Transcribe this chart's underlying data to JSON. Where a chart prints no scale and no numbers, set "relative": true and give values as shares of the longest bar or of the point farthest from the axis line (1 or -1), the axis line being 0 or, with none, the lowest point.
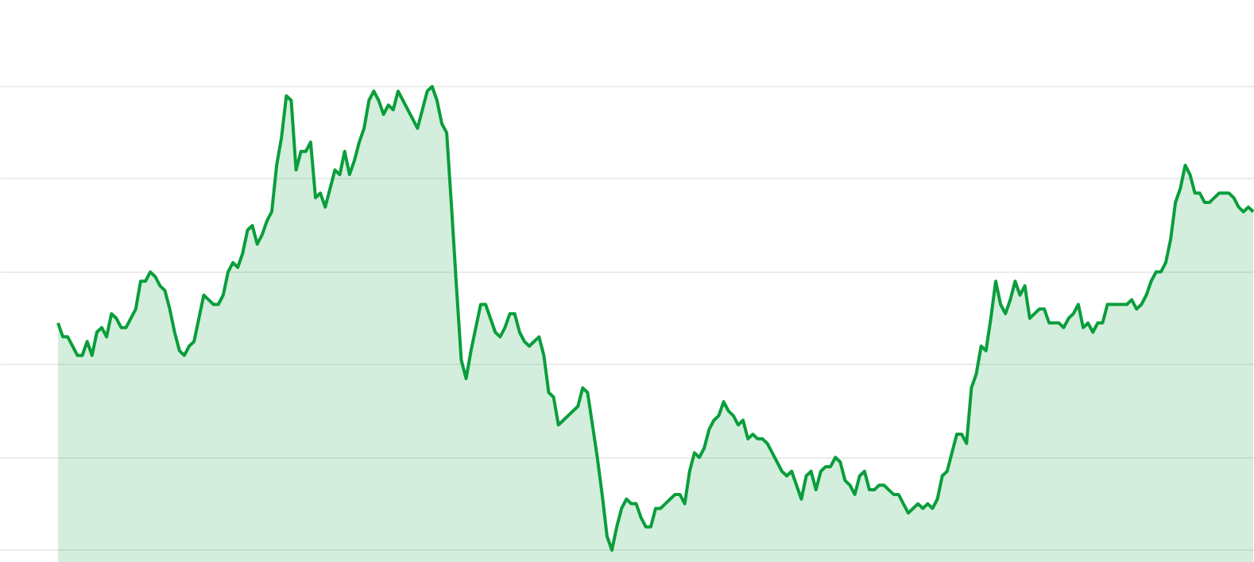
{
  "chart_data": {
    "type": "area",
    "relative": true,
    "grid": "y",
    "tick_labels": false,
    "categories": [
      null,
      null,
      null,
      null,
      null,
      null,
      null,
      null,
      null,
      null,
      null,
      null,
      null,
      null,
      null,
      null,
      null,
      null,
      null,
      null,
      null,
      null,
      null,
      null,
      null,
      null,
      null,
      null,
      null,
      null,
      null,
      null,
      null,
      null,
      null,
      null,
      null,
      null,
      null,
      null,
      null,
      null,
      null,
      null,
      null,
      null,
      null,
      null,
      null,
      null,
      null,
      null,
      null,
      null,
      null,
      null,
      null,
      null,
      null,
      null,
      null,
      null,
      null,
      null,
      null,
      null,
      null,
      null,
      null,
      null,
      null,
      null,
      null,
      null,
      null,
      null,
      null,
      null,
      null,
      null,
      null,
      null,
      null,
      null,
      null,
      null,
      null,
      null,
      null,
      null,
      null,
      null,
      null,
      null,
      null,
      null,
      null,
      null,
      null,
      null,
      null,
      null,
      null,
      null,
      null,
      null,
      null,
      null,
      null,
      null,
      null,
      null,
      null,
      null,
      null,
      null,
      null,
      null,
      null,
      null,
      null,
      null,
      null,
      null,
      null,
      null,
      null,
      null,
      null,
      null,
      null,
      null,
      null,
      null,
      null,
      null,
      null,
      null,
      null,
      null,
      null,
      null,
      null,
      null,
      null,
      null,
      null,
      null,
      null,
      null,
      null,
      null,
      null,
      null,
      null,
      null,
      null,
      null,
      null,
      null,
      null,
      null,
      null,
      null,
      null,
      null,
      null,
      null,
      null,
      null,
      null,
      null,
      null,
      null,
      null,
      null,
      null,
      null,
      null,
      null,
      null,
      null,
      null,
      null,
      null,
      null,
      null,
      null,
      null,
      null,
      null,
      null,
      null,
      null,
      null,
      null,
      null,
      null,
      null,
      null,
      null,
      null,
      null,
      null,
      null,
      null,
      null,
      null,
      null,
      null,
      null,
      null,
      null,
      null,
      null,
      null,
      null,
      null,
      null,
      null,
      null,
      null,
      null,
      null,
      null,
      null,
      null,
      null,
      null,
      null,
      null,
      null,
      null,
      null,
      null,
      null,
      null,
      null,
      null,
      null,
      null,
      null,
      null,
      null,
      null,
      null,
      null
    ],
    "series": [
      {
        "color": "#0a9e3c",
        "values": [
          0.49,
          0.46,
          0.46,
          0.44,
          0.42,
          0.42,
          0.45,
          0.42,
          0.47,
          0.48,
          0.46,
          0.51,
          0.5,
          0.48,
          0.48,
          0.5,
          0.52,
          0.58,
          0.58,
          0.6,
          0.59,
          0.57,
          0.56,
          0.52,
          0.47,
          0.43,
          0.42,
          0.44,
          0.45,
          0.5,
          0.55,
          0.54,
          0.53,
          0.53,
          0.55,
          0.6,
          0.62,
          0.61,
          0.64,
          0.69,
          0.7,
          0.66,
          0.68,
          0.71,
          0.73,
          0.83,
          0.89,
          0.98,
          0.97,
          0.82,
          0.86,
          0.86,
          0.88,
          0.76,
          0.77,
          0.74,
          0.78,
          0.82,
          0.81,
          0.86,
          0.81,
          0.84,
          0.88,
          0.91,
          0.97,
          0.99,
          0.97,
          0.94,
          0.96,
          0.95,
          0.99,
          0.97,
          0.95,
          0.93,
          0.91,
          0.95,
          0.99,
          1,
          0.97,
          0.92,
          0.9,
          0.74,
          0.57,
          0.41,
          0.37,
          0.43,
          0.48,
          0.53,
          0.53,
          0.5,
          0.47,
          0.46,
          0.48,
          0.51,
          0.51,
          0.47,
          0.45,
          0.44,
          0.45,
          0.46,
          0.42,
          0.34,
          0.33,
          0.27,
          0.28,
          0.29,
          0.3,
          0.31,
          0.35,
          0.34,
          0.27,
          0.2,
          0.12,
          0.03,
          0,
          0.05,
          0.09,
          0.11,
          0.1,
          0.1,
          0.07,
          0.05,
          0.05,
          0.09,
          0.09,
          0.1,
          0.11,
          0.12,
          0.12,
          0.1,
          0.17,
          0.21,
          0.2,
          0.22,
          0.26,
          0.28,
          0.29,
          0.32,
          0.3,
          0.29,
          0.27,
          0.28,
          0.24,
          0.25,
          0.24,
          0.24,
          0.23,
          0.21,
          0.19,
          0.17,
          0.16,
          0.17,
          0.14,
          0.11,
          0.16,
          0.17,
          0.13,
          0.17,
          0.18,
          0.18,
          0.2,
          0.19,
          0.15,
          0.14,
          0.12,
          0.16,
          0.17,
          0.13,
          0.13,
          0.14,
          0.14,
          0.13,
          0.12,
          0.12,
          0.1,
          0.08,
          0.09,
          0.1,
          0.09,
          0.1,
          0.09,
          0.11,
          0.16,
          0.17,
          0.21,
          0.25,
          0.25,
          0.23,
          0.35,
          0.38,
          0.44,
          0.43,
          0.5,
          0.58,
          0.53,
          0.51,
          0.54,
          0.58,
          0.55,
          0.57,
          0.5,
          0.51,
          0.52,
          0.52,
          0.49,
          0.49,
          0.49,
          0.48,
          0.5,
          0.51,
          0.53,
          0.48,
          0.49,
          0.47,
          0.49,
          0.49,
          0.53,
          0.53,
          0.53,
          0.53,
          0.53,
          0.54,
          0.52,
          0.53,
          0.55,
          0.58,
          0.6,
          0.6,
          0.62,
          0.67,
          0.75,
          0.78,
          0.83,
          0.81,
          0.77,
          0.77,
          0.75,
          0.75,
          0.76,
          0.77,
          0.77,
          0.77,
          0.76,
          0.74,
          0.73,
          0.74,
          0.73
        ]
      }
    ]
  }
}
